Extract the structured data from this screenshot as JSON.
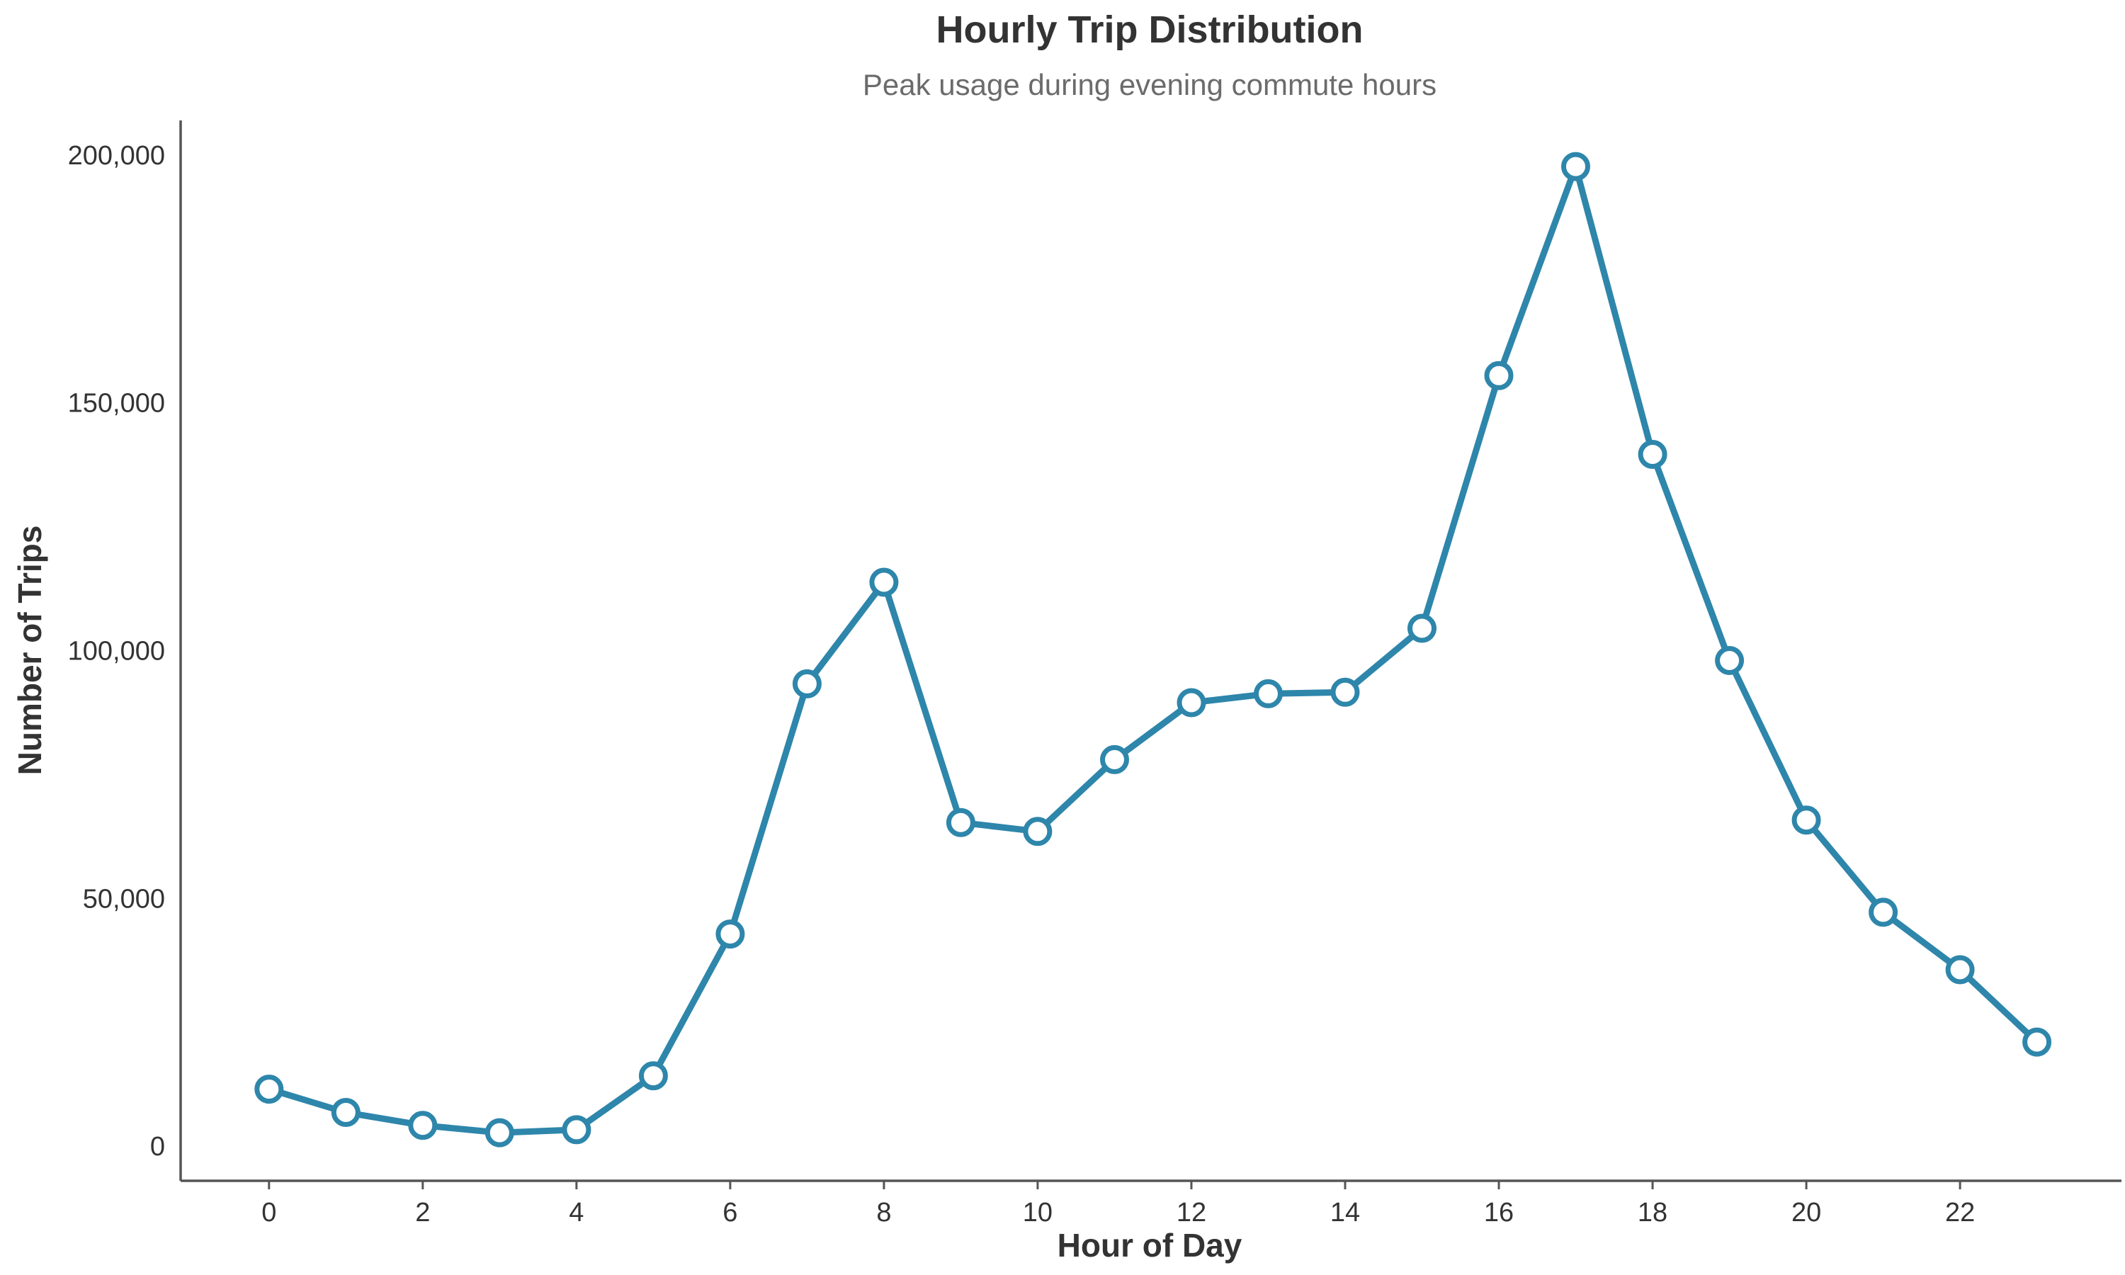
{
  "chart_data": {
    "type": "line",
    "title": "Hourly Trip Distribution",
    "subtitle": "Peak usage during evening commute hours",
    "xlabel": "Hour of Day",
    "ylabel": "Number of Trips",
    "x": [
      0,
      1,
      2,
      3,
      4,
      5,
      6,
      7,
      8,
      9,
      10,
      11,
      12,
      13,
      14,
      15,
      16,
      17,
      18,
      19,
      20,
      21,
      22,
      23
    ],
    "series": [
      {
        "values": [
          11500,
          6800,
          4200,
          2700,
          3300,
          14200,
          42800,
          93300,
          113800,
          65300,
          63500,
          78000,
          89500,
          91300,
          91600,
          104500,
          155500,
          197700,
          139600,
          98000,
          65800,
          47200,
          35600,
          21000
        ],
        "color": "#2e86ab"
      }
    ],
    "xticks": [
      0,
      2,
      4,
      6,
      8,
      10,
      12,
      14,
      16,
      18,
      20,
      22
    ],
    "xtick_labels": [
      "0",
      "2",
      "4",
      "6",
      "8",
      "10",
      "12",
      "14",
      "16",
      "18",
      "20",
      "22"
    ],
    "yticks": [
      0,
      50000,
      100000,
      150000,
      200000
    ],
    "ytick_labels": [
      "0",
      "50,000",
      "100,000",
      "150,000",
      "200,000"
    ],
    "xlim": [
      -1.15,
      24.1
    ],
    "ylim": [
      -7000,
      207000
    ],
    "grid": false,
    "legend": "none"
  }
}
